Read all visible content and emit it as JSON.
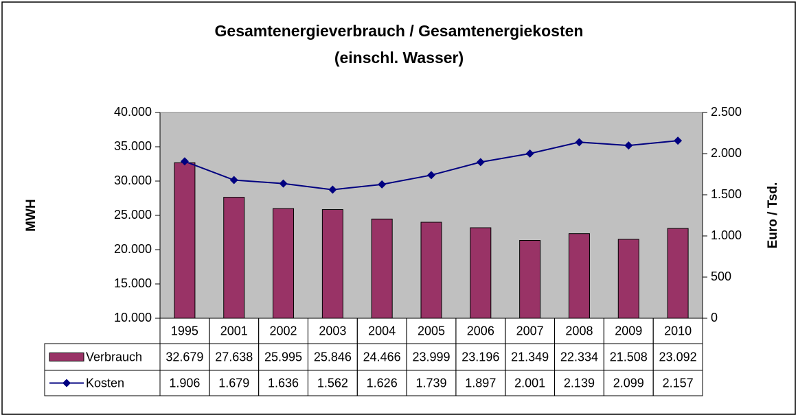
{
  "chart_data": {
    "type": "bar-line",
    "title": [
      "Gesamtenergieverbrauch / Gesamtenergiekosten",
      "(einschl. Wasser)"
    ],
    "ylabel": "MWH",
    "y2label": "Euro / Tsd.",
    "categories": [
      "1995",
      "2001",
      "2002",
      "2003",
      "2004",
      "2005",
      "2006",
      "2007",
      "2008",
      "2009",
      "2010"
    ],
    "series": [
      {
        "name": "Verbrauch",
        "type": "bar",
        "color": "#993366",
        "values": [
          32679,
          27638,
          25995,
          25846,
          24466,
          23999,
          23196,
          21349,
          22334,
          21508,
          23092
        ],
        "value_labels": [
          "32.679",
          "27.638",
          "25.995",
          "25.846",
          "24.466",
          "23.999",
          "23.196",
          "21.349",
          "22.334",
          "21.508",
          "23.092"
        ]
      },
      {
        "name": "Kosten",
        "type": "line",
        "axis": "y2",
        "color": "#000080",
        "values": [
          1906,
          1679,
          1636,
          1562,
          1626,
          1739,
          1897,
          2001,
          2139,
          2099,
          2157
        ],
        "value_labels": [
          "1.906",
          "1.679",
          "1.636",
          "1.562",
          "1.626",
          "1.739",
          "1.897",
          "2.001",
          "2.139",
          "2.099",
          "2.157"
        ]
      }
    ],
    "ylim": [
      10000,
      40000
    ],
    "yticks": [
      {
        "value": 10000,
        "label": "10.000"
      },
      {
        "value": 15000,
        "label": "15.000"
      },
      {
        "value": 20000,
        "label": "20.000"
      },
      {
        "value": 25000,
        "label": "25.000"
      },
      {
        "value": 30000,
        "label": "30.000"
      },
      {
        "value": 35000,
        "label": "35.000"
      },
      {
        "value": 40000,
        "label": "40.000"
      }
    ],
    "y2lim": [
      0,
      2500
    ],
    "y2ticks": [
      0,
      500,
      {
        "value": 1000,
        "label": "1.000"
      },
      {
        "value": 1500,
        "label": "1.500"
      },
      {
        "value": 2000,
        "label": "2.000"
      },
      {
        "value": 2500,
        "label": "2.500"
      }
    ],
    "plot_background": "#c0c0c0"
  }
}
